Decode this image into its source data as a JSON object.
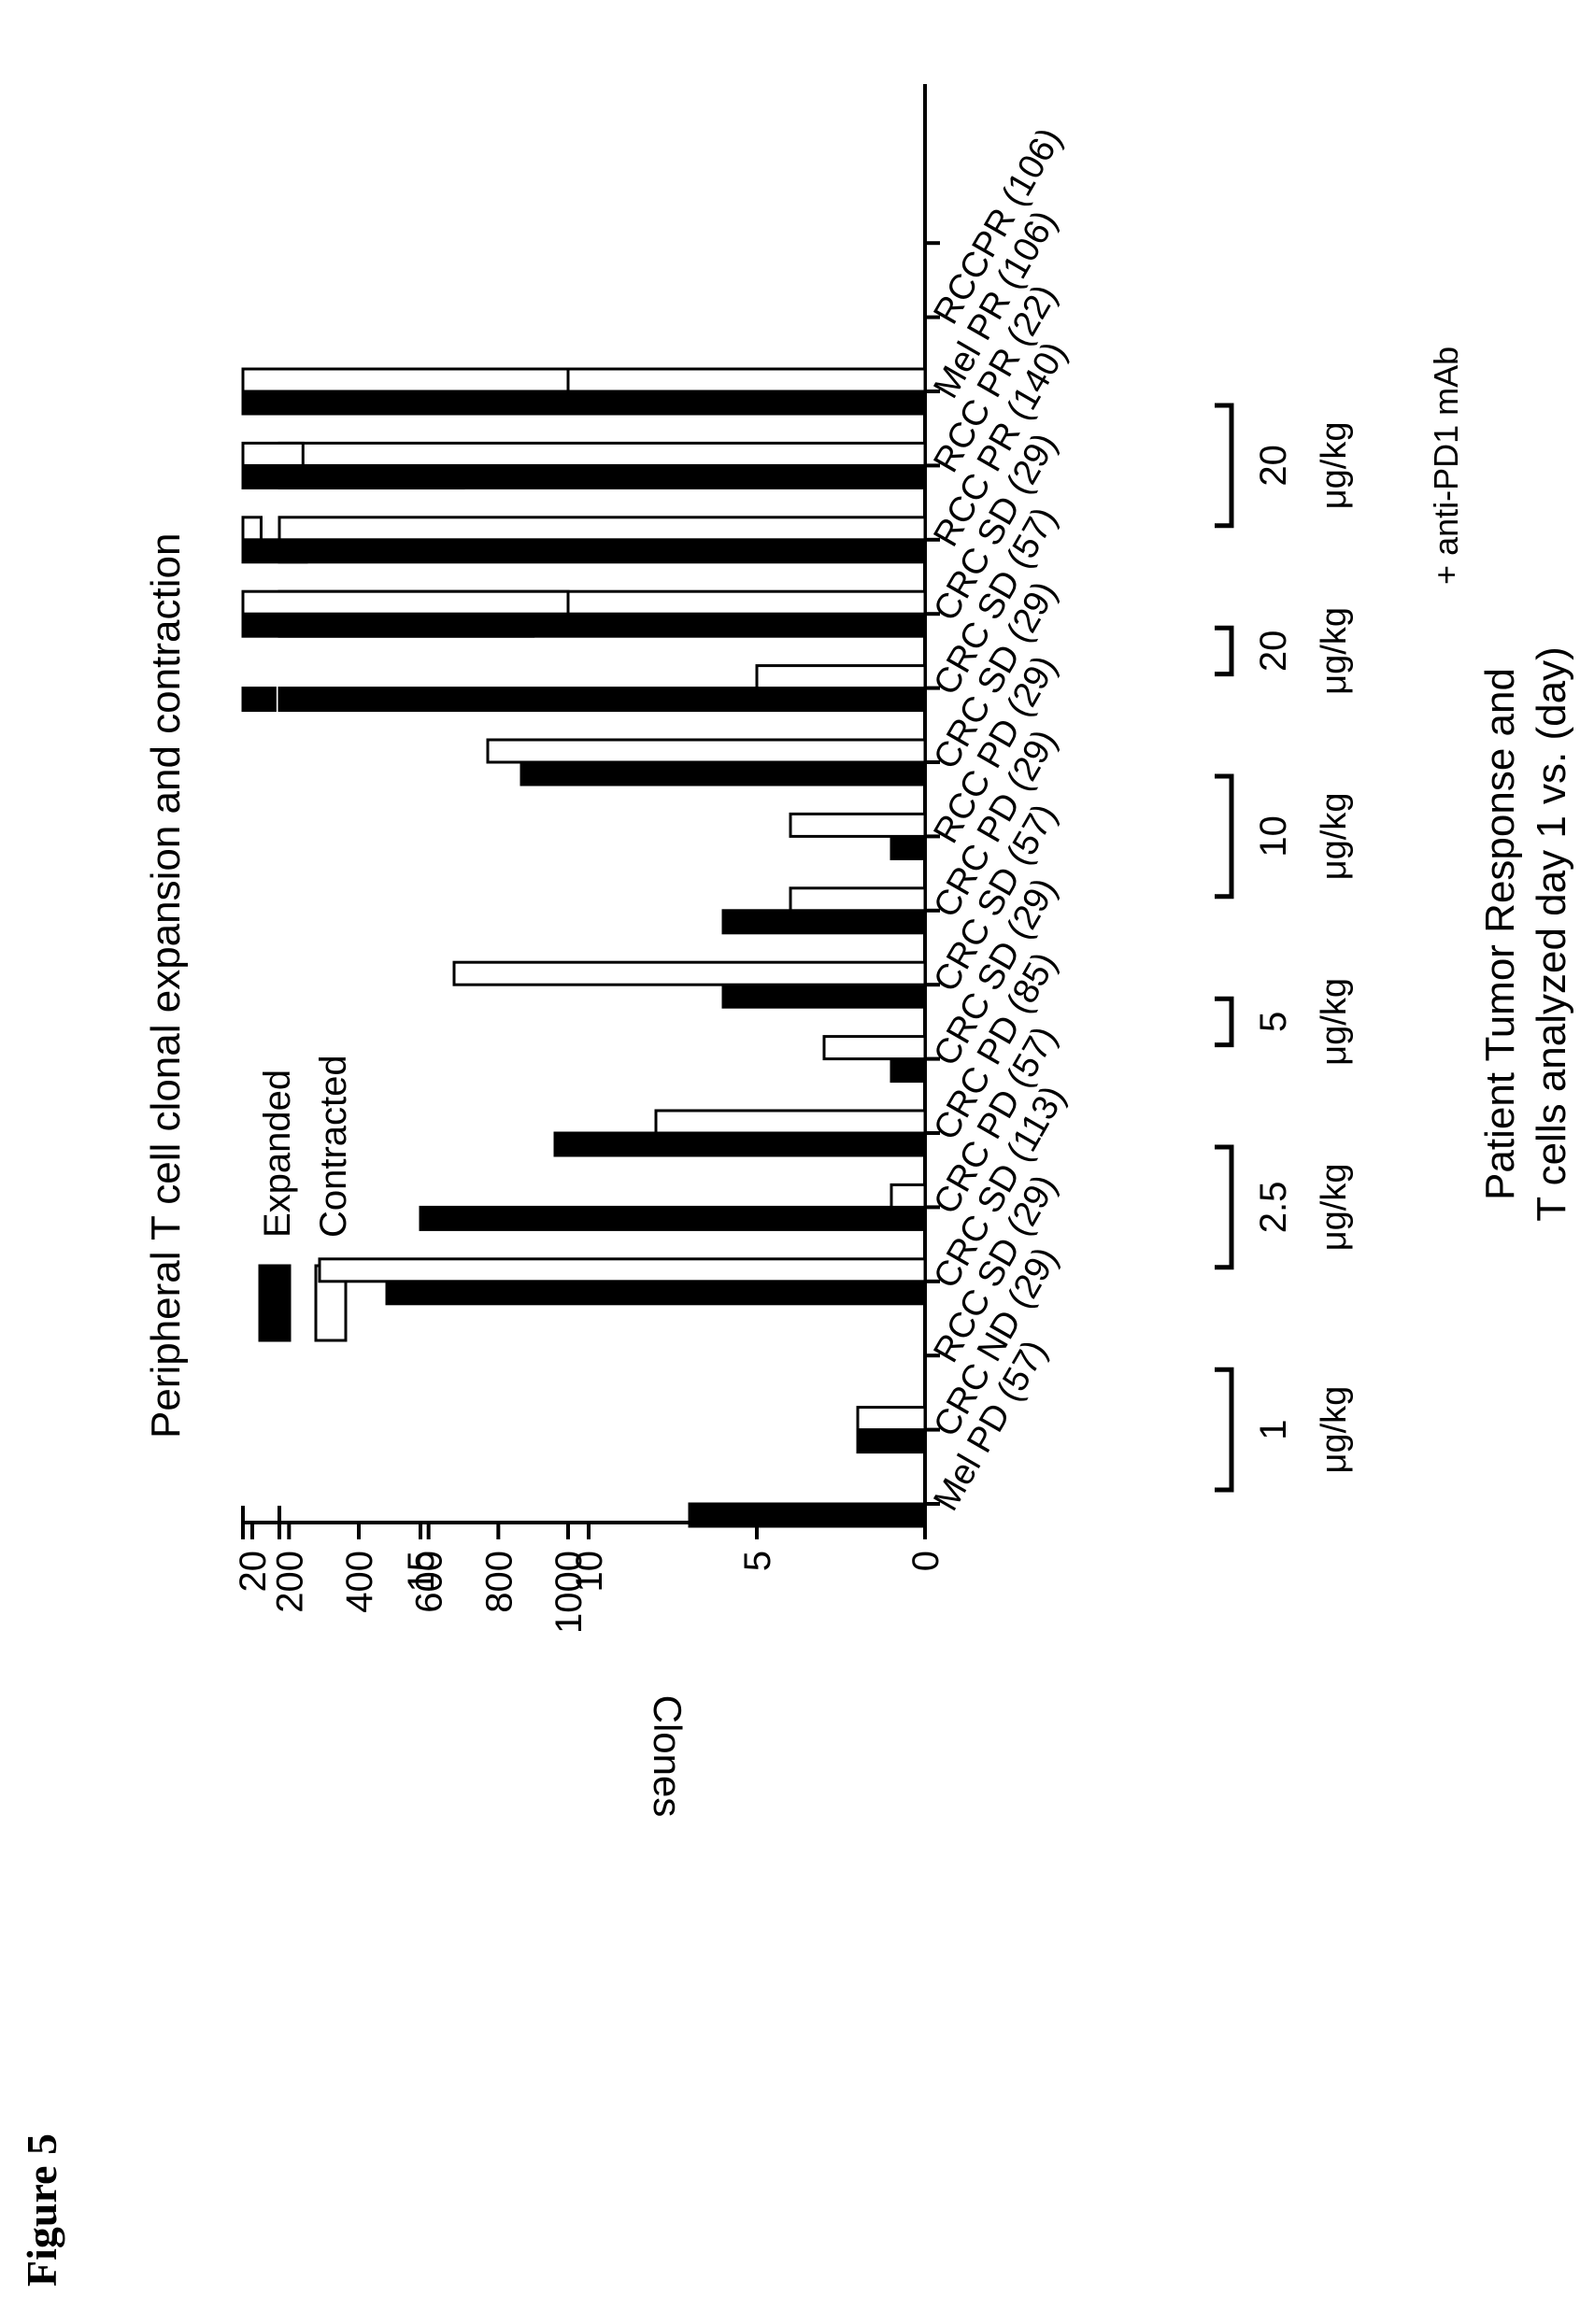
{
  "figure_label": "Figure 5",
  "chart_data": {
    "type": "bar",
    "title": "Peripheral T cell clonal expansion and contraction",
    "ylabel": "Clones",
    "xlabel_lines": [
      "Patient Tumor Response and",
      "T cells analyzed day 1 vs. (day)"
    ],
    "y_broken_axis": true,
    "ylim_lower": [
      0,
      20
    ],
    "ylim_upper": [
      100,
      1000
    ],
    "yticks_lower": [
      "0",
      "5",
      "10",
      "15",
      "20"
    ],
    "yticks_upper": [
      "200",
      "400",
      "600",
      "800",
      "1000"
    ],
    "legend": {
      "placement": "top-left",
      "entries": [
        "Expanded",
        "Contracted"
      ]
    },
    "series_colors": {
      "Expanded": "#000000",
      "Contracted": "#ffffff"
    },
    "categories": [
      "Mel PD (57)",
      "CRC ND (29)",
      "RCC SD (29)",
      "CRC SD (113)",
      "CRC PD (57)",
      "CRC PD (85)",
      "CRC SD (29)",
      "CRC SD (57)",
      "CRC PD (29)",
      "RCC PD (29)",
      "CRC SD (29)",
      "CRC SD (57)",
      "CRC SD (29)",
      "RCC PR (140)",
      "RCC PR (22)",
      "Mel PR (106)",
      "RCCPR (106)"
    ],
    "series": [
      {
        "name": "Expanded",
        "values": [
          7,
          2,
          null,
          16,
          15,
          11,
          1,
          6,
          6,
          1,
          12,
          160,
          900,
          250,
          700,
          280,
          null
        ]
      },
      {
        "name": "Contracted",
        "values": [
          0,
          2,
          null,
          18,
          1,
          8,
          3,
          14,
          4,
          4,
          13,
          5,
          1000,
          120,
          240,
          1000,
          null
        ]
      }
    ],
    "dose_groups": [
      {
        "dose": "1",
        "unit": "μg/kg"
      },
      {
        "dose": "2.5",
        "unit": "μg/kg"
      },
      {
        "dose": "5",
        "unit": "μg/kg"
      },
      {
        "dose": "10",
        "unit": "μg/kg"
      },
      {
        "dose": "20",
        "unit": "μg/kg"
      },
      {
        "dose": "20",
        "unit": "μg/kg"
      }
    ],
    "annotation": "+ anti-PD1 mAb"
  }
}
